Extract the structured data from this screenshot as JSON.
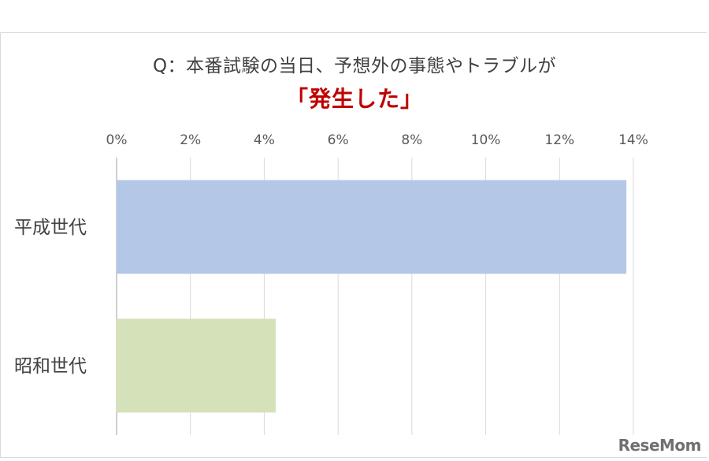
{
  "title_line1": "Q：本番試験の当日、予想外の事態やトラブルが",
  "title_line2": "「発生した」",
  "logo": "ReseMom",
  "chart_data": {
    "type": "bar",
    "orientation": "horizontal",
    "categories": [
      "平成世代",
      "昭和世代"
    ],
    "values": [
      13.8,
      4.3
    ],
    "bar_colors": [
      "#b4c7e7",
      "#d5e2b9"
    ],
    "xlim": [
      0,
      14
    ],
    "xticks": [
      0,
      2,
      4,
      6,
      8,
      10,
      12,
      14
    ],
    "xtick_labels": [
      "0%",
      "2%",
      "4%",
      "6%",
      "8%",
      "10%",
      "12%",
      "14%"
    ],
    "grid": true,
    "axis_position": "top"
  }
}
